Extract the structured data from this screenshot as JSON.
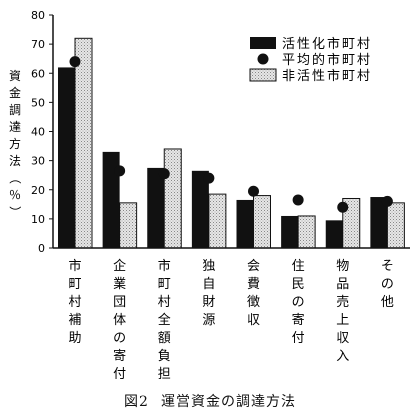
{
  "caption": {
    "figure": "図2",
    "text": "運営資金の調達方法"
  },
  "chart_data": {
    "type": "bar",
    "ylabel": "資金調達方法（％）",
    "ylim": [
      0,
      80
    ],
    "yticks": [
      "0",
      "10",
      "20",
      "30",
      "40",
      "50",
      "60",
      "70",
      "80"
    ],
    "categories": [
      "市町村補助",
      "企業団体の寄付",
      "市町村全額負担",
      "独自財源",
      "会費徴収",
      "住民の寄付",
      "物品売上収入",
      "その他"
    ],
    "series": [
      {
        "name": "活性化市町村",
        "kind": "bar",
        "values": [
          62,
          33,
          27.5,
          26.5,
          16.5,
          11,
          9.5,
          17.5
        ],
        "color": "#111111"
      },
      {
        "name": "非活性市町村",
        "kind": "bar",
        "values": [
          72,
          15.5,
          34,
          18.5,
          18,
          11,
          17,
          15.5
        ],
        "color": "#d4d4d4"
      },
      {
        "name": "平均的市町村",
        "kind": "point",
        "values": [
          64,
          26.5,
          25.5,
          24,
          19.5,
          16.5,
          14,
          16
        ],
        "color": "#111111"
      }
    ],
    "legend_position": "top-right",
    "grid": false
  }
}
